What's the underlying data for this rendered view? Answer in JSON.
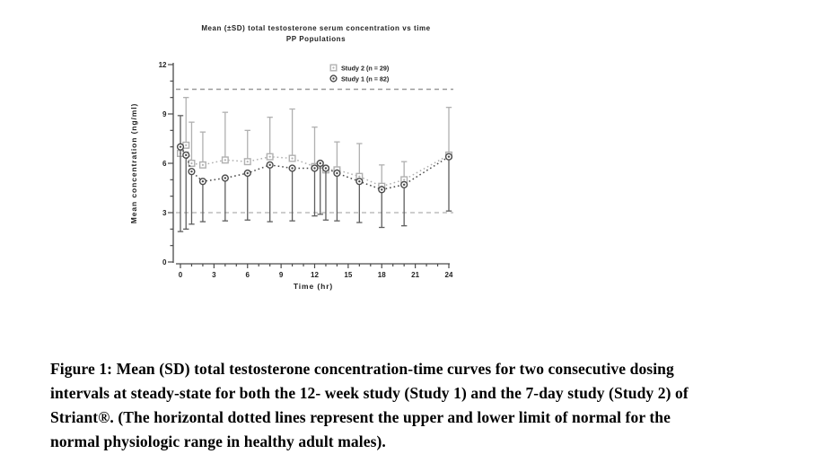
{
  "figure": {
    "title_line1": "Mean (±SD) total testosterone serum concentration vs time",
    "title_line2": "PP Populations",
    "y_axis_label": "Mean concentration (ng/ml)",
    "x_axis_label": "Time (hr)",
    "legend": [
      {
        "marker": "square",
        "label": "Study 2 (n = 29)"
      },
      {
        "marker": "circle",
        "label": "Study 1 (n = 82)"
      }
    ],
    "colors": {
      "study2": "#b0b0b0",
      "study1": "#4a4a4a",
      "axis": "#4a4a4a",
      "upper_limit_line": "#9a9a9a",
      "lower_limit_line": "#bdbdbd",
      "text": "#222222"
    }
  },
  "chart_data": {
    "type": "line",
    "title": "Mean (±SD) total testosterone serum concentration vs time",
    "subtitle": "PP Populations",
    "xlabel": "Time (hr)",
    "ylabel": "Mean concentration (ng/ml)",
    "xlim": [
      0,
      24
    ],
    "ylim": [
      0,
      12
    ],
    "x_major_ticks": [
      0,
      3,
      6,
      9,
      12,
      15,
      18,
      21,
      24
    ],
    "y_major_ticks": [
      0,
      3,
      6,
      9,
      12
    ],
    "minor_tick_step_x": 1,
    "minor_tick_step_y": 1,
    "grid": false,
    "legend_position": "top-right-inside",
    "reference_lines": {
      "upper_limit_normal": 10.5,
      "lower_limit_normal": 3.0,
      "style": "dashed"
    },
    "x": [
      0,
      0.5,
      1,
      2,
      4,
      6,
      8,
      10,
      12,
      12.5,
      13,
      14,
      16,
      18,
      20,
      24
    ],
    "series": [
      {
        "name": "Study 2 (n = 29)",
        "marker": "square",
        "values": [
          6.6,
          7.1,
          6.0,
          5.9,
          6.2,
          6.1,
          6.4,
          6.3,
          5.8,
          5.9,
          5.6,
          5.6,
          5.2,
          4.6,
          5.0,
          6.5
        ],
        "sd_upper_cap": [
          null,
          10.0,
          8.5,
          7.9,
          9.1,
          8.0,
          8.8,
          9.3,
          8.2,
          null,
          null,
          7.3,
          7.2,
          5.9,
          6.1,
          9.4
        ],
        "sd_lower_cap": [
          null,
          null,
          null,
          null,
          null,
          null,
          null,
          null,
          null,
          null,
          null,
          null,
          null,
          null,
          null,
          null
        ]
      },
      {
        "name": "Study 1 (n = 82)",
        "marker": "circle",
        "values": [
          7.0,
          6.5,
          5.5,
          4.9,
          5.1,
          5.4,
          5.9,
          5.7,
          5.7,
          6.0,
          5.7,
          5.4,
          4.9,
          4.4,
          4.7,
          6.4
        ],
        "sd_upper_cap": [
          8.9,
          null,
          null,
          null,
          null,
          null,
          null,
          null,
          null,
          null,
          null,
          null,
          null,
          null,
          null,
          null
        ],
        "sd_lower_cap": [
          1.85,
          2.0,
          2.3,
          2.45,
          2.5,
          2.55,
          2.45,
          2.5,
          2.8,
          2.9,
          2.55,
          2.5,
          2.4,
          2.1,
          2.2,
          3.1
        ]
      }
    ]
  },
  "caption": {
    "text": "Figure 1:  Mean (SD) total testosterone concentration-time curves for two consecutive dosing\nintervals at steady-state for both the 12- week study (Study 1) and the 7-day study (Study 2) of\nStriant®.  (The horizontal dotted lines represent the upper and lower limit of normal for the\nnormal physiologic range in healthy adult males)."
  }
}
